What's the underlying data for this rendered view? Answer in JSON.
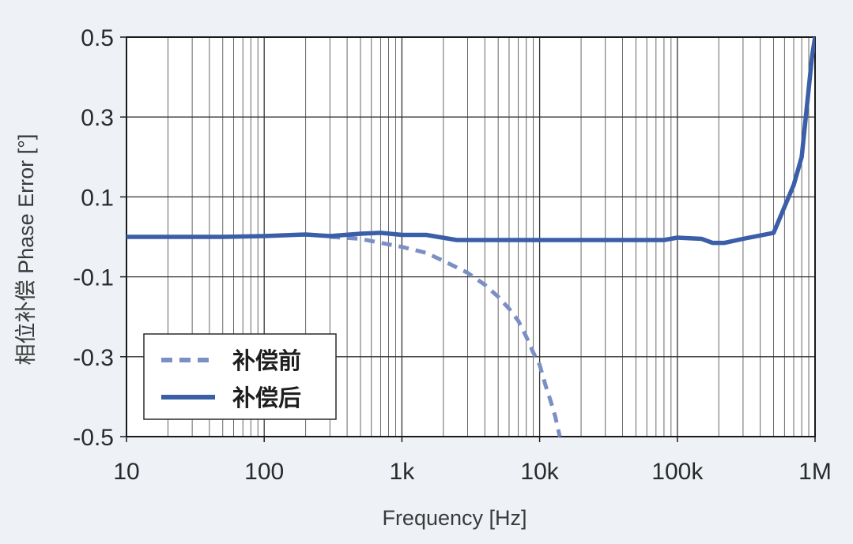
{
  "chart_data": {
    "type": "line",
    "xscale": "log",
    "xlim": [
      10,
      1000000
    ],
    "ylim": [
      -0.5,
      0.5
    ],
    "xlabel": "Frequency [Hz]",
    "ylabel": "相位补偿 Phase Error [°]",
    "x_ticks": [
      {
        "value": 10,
        "label": "10"
      },
      {
        "value": 100,
        "label": "100"
      },
      {
        "value": 1000,
        "label": "1k"
      },
      {
        "value": 10000,
        "label": "10k"
      },
      {
        "value": 100000,
        "label": "100k"
      },
      {
        "value": 1000000,
        "label": "1M"
      }
    ],
    "y_ticks": [
      {
        "value": 0.5,
        "label": "0.5"
      },
      {
        "value": 0.3,
        "label": "0.3"
      },
      {
        "value": 0.1,
        "label": "0.1"
      },
      {
        "value": -0.1,
        "label": "-0.1"
      },
      {
        "value": -0.3,
        "label": "-0.3"
      },
      {
        "value": -0.5,
        "label": "-0.5"
      }
    ],
    "grid": true,
    "legend_position": "bottom-left",
    "series": [
      {
        "name": "补偿前",
        "style": "dashed",
        "color": "#7b8fc4",
        "points": [
          [
            300,
            0.0
          ],
          [
            500,
            -0.005
          ],
          [
            700,
            -0.015
          ],
          [
            1000,
            -0.025
          ],
          [
            1500,
            -0.04
          ],
          [
            2000,
            -0.06
          ],
          [
            3000,
            -0.09
          ],
          [
            4000,
            -0.12
          ],
          [
            5000,
            -0.15
          ],
          [
            6000,
            -0.18
          ],
          [
            7000,
            -0.21
          ],
          [
            8000,
            -0.25
          ],
          [
            9000,
            -0.29
          ],
          [
            10000,
            -0.32
          ],
          [
            11000,
            -0.37
          ],
          [
            12000,
            -0.41
          ],
          [
            13000,
            -0.45
          ],
          [
            14000,
            -0.5
          ]
        ]
      },
      {
        "name": "补偿后",
        "style": "solid",
        "color": "#3a5ea8",
        "points": [
          [
            10,
            0.0
          ],
          [
            50,
            0.0
          ],
          [
            100,
            0.002
          ],
          [
            200,
            0.006
          ],
          [
            300,
            0.002
          ],
          [
            500,
            0.008
          ],
          [
            700,
            0.01
          ],
          [
            1000,
            0.005
          ],
          [
            1500,
            0.005
          ],
          [
            2500,
            -0.008
          ],
          [
            5000,
            -0.008
          ],
          [
            10000,
            -0.008
          ],
          [
            50000,
            -0.008
          ],
          [
            80000,
            -0.008
          ],
          [
            100000,
            -0.002
          ],
          [
            150000,
            -0.005
          ],
          [
            180000,
            -0.015
          ],
          [
            220000,
            -0.015
          ],
          [
            300000,
            -0.005
          ],
          [
            500000,
            0.01
          ],
          [
            700000,
            0.13
          ],
          [
            800000,
            0.2
          ],
          [
            950000,
            0.45
          ],
          [
            1000000,
            0.5
          ]
        ]
      }
    ]
  }
}
